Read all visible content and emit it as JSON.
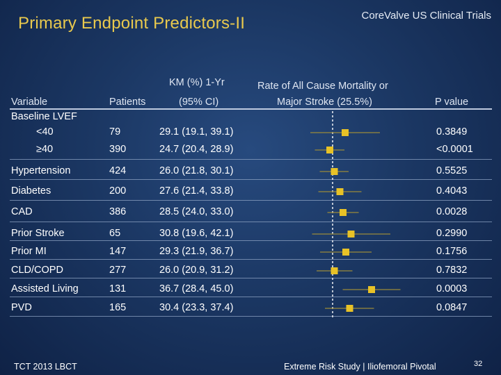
{
  "slide": {
    "title": "Primary Endpoint Predictors-II",
    "brand": "CoreValve US Clinical Trials",
    "footer_left": "TCT 2013 LBCT",
    "footer_right_a": "Extreme Risk Study",
    "footer_sep": "|",
    "footer_right_b": "Iliofemoral Pivotal",
    "page_number": "32"
  },
  "table": {
    "headers": {
      "variable": "Variable",
      "patients": "Patients",
      "km_line1": "KM (%) 1-Yr",
      "km_line2": "(95% CI)",
      "rate_line1": "Rate of All Cause Mortality or",
      "rate_line2": "Major Stroke (25.5%)",
      "pvalue": "P value"
    },
    "group_label": "Baseline  LVEF"
  },
  "chart_data": {
    "type": "forest",
    "title": "",
    "reference_value": 25.5,
    "xlim": [
      0,
      60
    ],
    "colors": {
      "point": "#e8c227",
      "ci_line": "#9a8a3a",
      "reference": "#ffffff",
      "text": "#ffffff"
    },
    "rows": [
      {
        "variable": "<40",
        "indent": true,
        "patients": "79",
        "km_ci": "29.1 (19.1, 39.1)",
        "estimate": 29.1,
        "lower": 19.1,
        "upper": 39.1,
        "pvalue": "0.3849"
      },
      {
        "variable": "≥40",
        "indent": true,
        "patients": "390",
        "km_ci": "24.7 (20.4, 28.9)",
        "estimate": 24.7,
        "lower": 20.4,
        "upper": 28.9,
        "pvalue": "<0.0001"
      },
      {
        "variable": "Hypertension",
        "indent": false,
        "patients": "424",
        "km_ci": "26.0 (21.8, 30.1)",
        "estimate": 26.0,
        "lower": 21.8,
        "upper": 30.1,
        "pvalue": "0.5525"
      },
      {
        "variable": "Diabetes",
        "indent": false,
        "patients": "200",
        "km_ci": "27.6 (21.4, 33.8)",
        "estimate": 27.6,
        "lower": 21.4,
        "upper": 33.8,
        "pvalue": "0.4043"
      },
      {
        "variable": "CAD",
        "indent": false,
        "patients": "386",
        "km_ci": "28.5 (24.0, 33.0)",
        "estimate": 28.5,
        "lower": 24.0,
        "upper": 33.0,
        "pvalue": "0.0028"
      },
      {
        "variable": "Prior Stroke",
        "indent": false,
        "patients": "65",
        "km_ci": "30.8 (19.6, 42.1)",
        "estimate": 30.8,
        "lower": 19.6,
        "upper": 42.1,
        "pvalue": "0.2990"
      },
      {
        "variable": "Prior MI",
        "indent": false,
        "patients": "147",
        "km_ci": "29.3 (21.9, 36.7)",
        "estimate": 29.3,
        "lower": 21.9,
        "upper": 36.7,
        "pvalue": "0.1756"
      },
      {
        "variable": "CLD/COPD",
        "indent": false,
        "patients": "277",
        "km_ci": "26.0 (20.9, 31.2)",
        "estimate": 26.0,
        "lower": 20.9,
        "upper": 31.2,
        "pvalue": "0.7832"
      },
      {
        "variable": "Assisted Living",
        "indent": false,
        "patients": "131",
        "km_ci": "36.7 (28.4, 45.0)",
        "estimate": 36.7,
        "lower": 28.4,
        "upper": 45.0,
        "pvalue": "0.0003"
      },
      {
        "variable": "PVD",
        "indent": false,
        "patients": "165",
        "km_ci": "30.4 (23.3, 37.4)",
        "estimate": 30.4,
        "lower": 23.3,
        "upper": 37.4,
        "pvalue": "0.0847"
      }
    ]
  }
}
